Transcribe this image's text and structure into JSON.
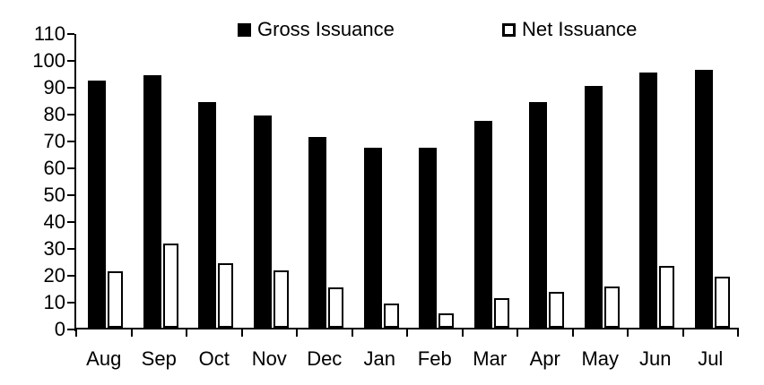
{
  "chart_data": {
    "type": "bar",
    "title": "",
    "xlabel": "",
    "ylabel": "",
    "categories": [
      "Aug",
      "Sep",
      "Oct",
      "Nov",
      "Dec",
      "Jan",
      "Feb",
      "Mar",
      "Apr",
      "May",
      "Jun",
      "Jul"
    ],
    "series": [
      {
        "name": "Gross Issuance",
        "style": "filled-black",
        "values": [
          92,
          94,
          84,
          79,
          71,
          67,
          67,
          77,
          84,
          90,
          95,
          96
        ]
      },
      {
        "name": "Net Issuance",
        "style": "white-outlined",
        "values": [
          21,
          31.5,
          24,
          21.5,
          15,
          9,
          5.5,
          11,
          13.5,
          15.5,
          23,
          19
        ]
      }
    ],
    "ylim": [
      0,
      110
    ],
    "ytick_step": 10,
    "yticks": [
      0,
      10,
      20,
      30,
      40,
      50,
      60,
      70,
      80,
      90,
      100,
      110
    ],
    "grid": false,
    "legend_position": "top",
    "colors": {
      "gross_fill": "#000000",
      "net_fill": "#ffffff",
      "net_stroke": "#000000",
      "axis": "#000000",
      "background": "#ffffff"
    }
  }
}
